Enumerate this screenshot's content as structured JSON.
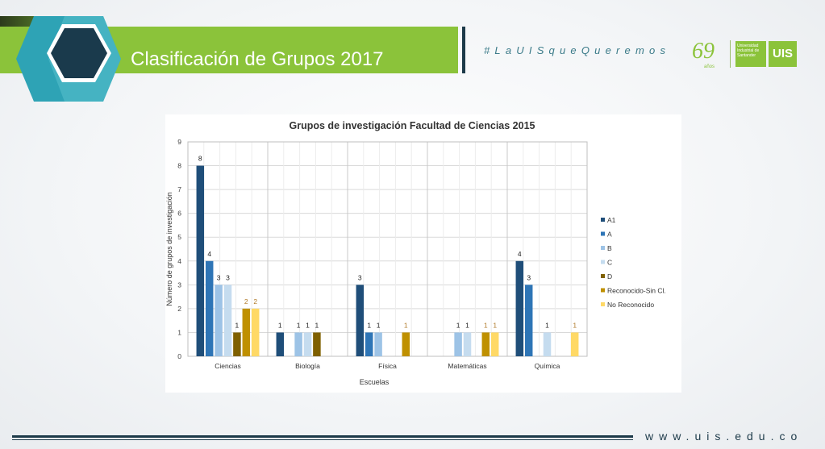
{
  "header": {
    "title": "Clasificación de Grupos 2017",
    "hashtag": "#LaUISqueQueremos",
    "logo_number": "69",
    "logo_years": "años",
    "logo_university": "Universidad Industrial de Santander",
    "logo_shield": "UIS"
  },
  "footer": {
    "url": "www.uis.edu.co"
  },
  "colors": {
    "banner": "#8bc33a",
    "dark": "#1d3a49",
    "series": [
      "#1f4e79",
      "#2e75b6",
      "#9dc3e6",
      "#c5dcef",
      "#7f6000",
      "#bf9000",
      "#ffd966"
    ]
  },
  "chart_data": {
    "type": "bar",
    "title": "Grupos de investigación Facultad de Ciencias 2015",
    "xlabel": "Escuelas",
    "ylabel": "Número de grupos de investigación",
    "categories": [
      "Ciencias",
      "Biología",
      "Física",
      "Matemáticas",
      "Química"
    ],
    "ylim": [
      0,
      9
    ],
    "yticks": [
      "0",
      "1",
      "2",
      "3",
      "4",
      "5",
      "6",
      "7",
      "8",
      "9"
    ],
    "grid": true,
    "legend_position": "right",
    "series": [
      {
        "name": "A1",
        "values": [
          8,
          1,
          3,
          0,
          4
        ]
      },
      {
        "name": "A",
        "values": [
          4,
          0,
          1,
          0,
          3
        ]
      },
      {
        "name": "B",
        "values": [
          3,
          1,
          1,
          1,
          0
        ]
      },
      {
        "name": "C",
        "values": [
          3,
          1,
          0,
          1,
          1
        ]
      },
      {
        "name": "D",
        "values": [
          1,
          1,
          0,
          0,
          0
        ]
      },
      {
        "name": "Reconocido-Sin Cl.",
        "values": [
          2,
          0,
          1,
          1,
          0
        ]
      },
      {
        "name": "No Reconocido",
        "values": [
          2,
          0,
          0,
          1,
          1
        ]
      }
    ]
  }
}
